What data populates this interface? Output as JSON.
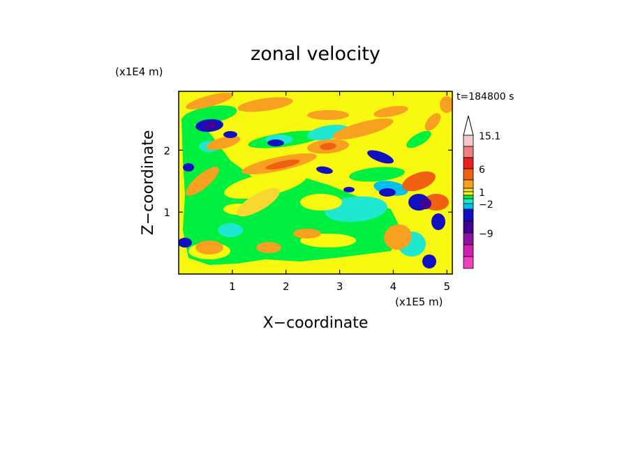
{
  "chart_data": {
    "type": "heatmap",
    "title": "zonal velocity",
    "xlabel": "X−coordinate",
    "ylabel": "Z−coordinate",
    "x_unit": "(x1E5 m)",
    "y_unit": "(x1E4 m)",
    "time_label": "t=184800 s",
    "xlim": [
      0,
      5.1
    ],
    "ylim": [
      0,
      2.95
    ],
    "x_ticks": [
      "1",
      "2",
      "3",
      "4",
      "5"
    ],
    "x_tick_values": [
      1,
      2,
      3,
      4,
      5
    ],
    "y_ticks": [
      "1",
      "2"
    ],
    "y_tick_values": [
      1,
      2
    ],
    "colorbar": {
      "labels": [
        "15.1",
        "6",
        "1",
        "−2",
        "−9"
      ],
      "levels_top_to_bottom": [
        15.1,
        12,
        9,
        6,
        3,
        1.5,
        1,
        0.5,
        -0.5,
        -2,
        -4,
        -6,
        -9,
        -12
      ],
      "colors_top_to_bottom": [
        "#f8c8c8",
        "#f08080",
        "#e82020",
        "#f06010",
        "#f8a020",
        "#f8d830",
        "#f8f810",
        "#00f040",
        "#20e8d0",
        "#00c0f0",
        "#1010c0",
        "#400090",
        "#9010a0",
        "#d020b0",
        "#f040c0"
      ],
      "extend_max": true
    }
  }
}
